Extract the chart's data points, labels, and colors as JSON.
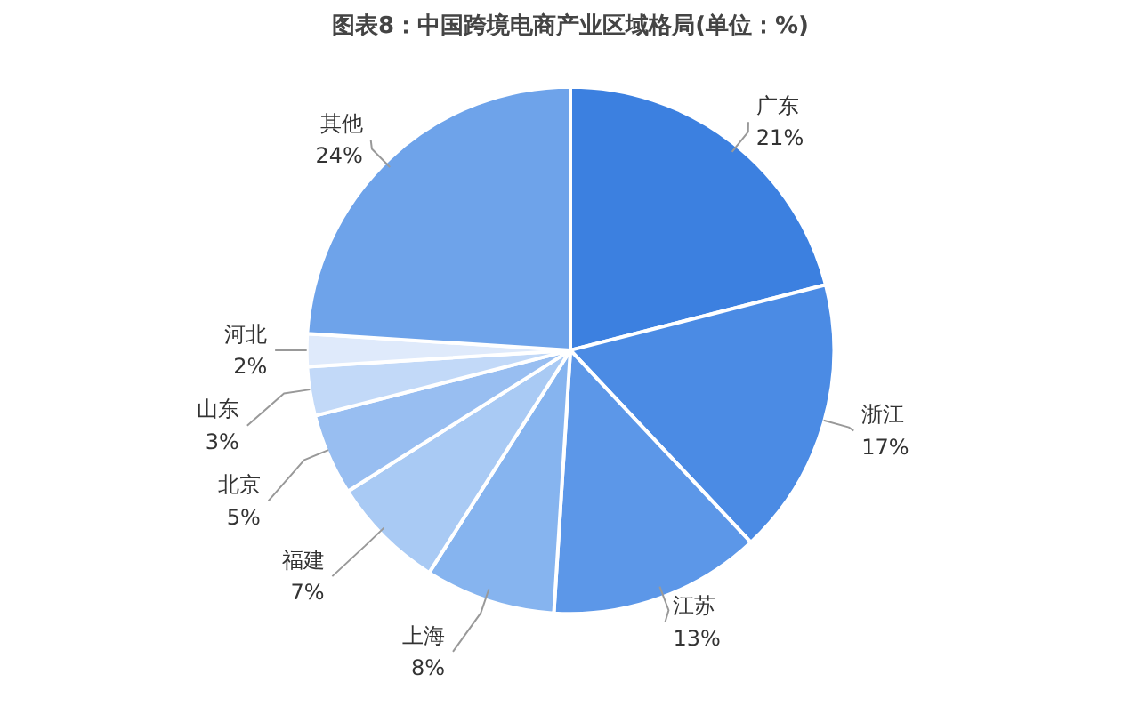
{
  "chart_data": {
    "type": "pie",
    "title": "图表8：中国跨境电商产业区域格局(单位：%)",
    "categories": [
      "广东",
      "浙江",
      "江苏",
      "上海",
      "福建",
      "北京",
      "山东",
      "河北",
      "其他"
    ],
    "values": [
      21,
      17,
      13,
      8,
      7,
      5,
      3,
      2,
      24
    ],
    "value_labels": [
      "21%",
      "17%",
      "13%",
      "8%",
      "7%",
      "5%",
      "3%",
      "2%",
      "24%"
    ],
    "colors": [
      "#3c80e0",
      "#4b8be4",
      "#5c97e8",
      "#86b4ef",
      "#a9caf4",
      "#98bef1",
      "#c2d9f8",
      "#dfeafb",
      "#6ea3ea"
    ]
  }
}
